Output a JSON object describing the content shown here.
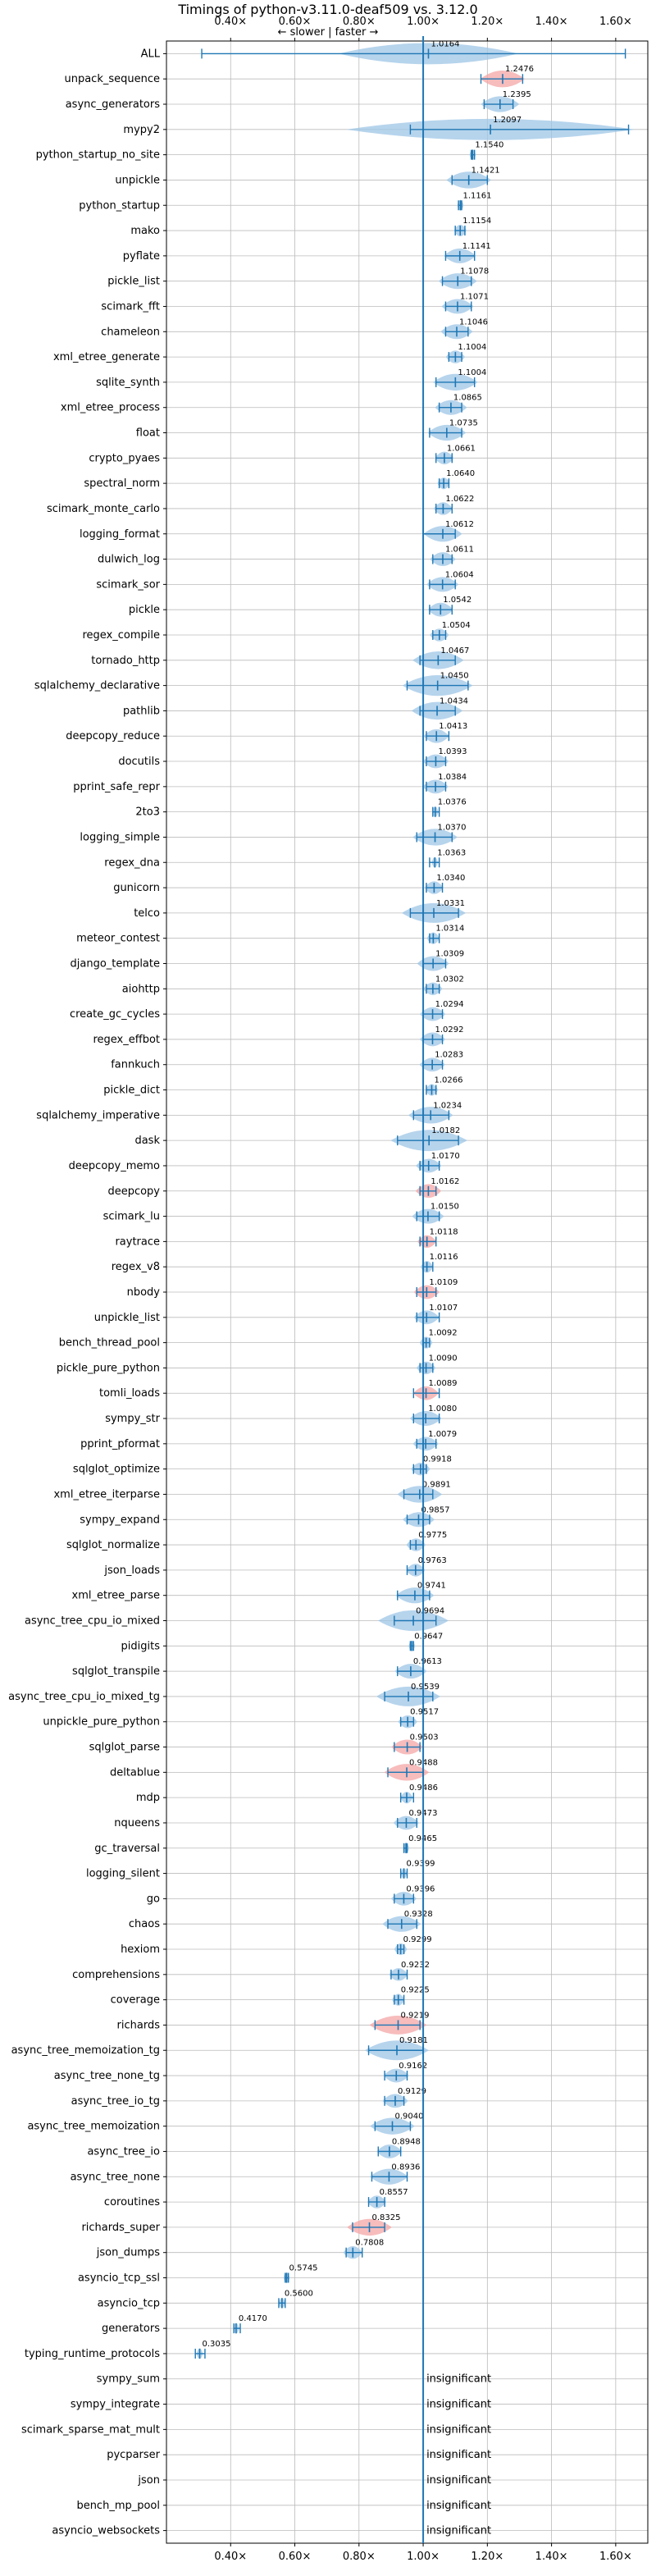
{
  "chart_data": {
    "type": "violin",
    "title": "Timings of python-v3.11.0-deaf509 vs. 3.12.0",
    "direction_label": "← slower  |  faster →",
    "x_tick_labels": [
      "0.40×",
      "0.60×",
      "0.80×",
      "1.00×",
      "1.20×",
      "1.40×",
      "1.60×"
    ],
    "x_ticks": [
      0.4,
      0.6,
      0.8,
      1.0,
      1.2,
      1.4,
      1.6
    ],
    "xlim": [
      0.2,
      1.7
    ],
    "reference_line": 1.0,
    "grid": true,
    "insignificant_label": "insignificant",
    "colors": {
      "violin": "#9ec6e6",
      "significant_violin": "#f4a6a6",
      "stat": "#1f77b4",
      "grid": "#bbbbbb",
      "reference": "#1f77b4"
    },
    "benchmarks": [
      {
        "name": "ALL",
        "value": 1.0164,
        "label": "1.0164",
        "lo": 0.31,
        "hi": 1.63,
        "spread": 0.28
      },
      {
        "name": "unpack_sequence",
        "value": 1.2476,
        "label": "1.2476",
        "lo": 1.18,
        "hi": 1.31,
        "spread": 0.07,
        "highlight": true
      },
      {
        "name": "async_generators",
        "value": 1.2395,
        "label": "1.2395",
        "lo": 1.19,
        "hi": 1.28,
        "spread": 0.06
      },
      {
        "name": "mypy2",
        "value": 1.2097,
        "label": "1.2097",
        "lo": 0.96,
        "hi": 1.64,
        "spread": 0.45
      },
      {
        "name": "python_startup_no_site",
        "value": 1.154,
        "label": "1.1540",
        "lo": 1.15,
        "hi": 1.16,
        "spread": 0.01
      },
      {
        "name": "unpickle",
        "value": 1.1421,
        "label": "1.1421",
        "lo": 1.09,
        "hi": 1.2,
        "spread": 0.07
      },
      {
        "name": "python_startup",
        "value": 1.1161,
        "label": "1.1161",
        "lo": 1.11,
        "hi": 1.12,
        "spread": 0.01
      },
      {
        "name": "mako",
        "value": 1.1154,
        "label": "1.1154",
        "lo": 1.1,
        "hi": 1.13,
        "spread": 0.02
      },
      {
        "name": "pyflate",
        "value": 1.1141,
        "label": "1.1141",
        "lo": 1.07,
        "hi": 1.16,
        "spread": 0.05
      },
      {
        "name": "pickle_list",
        "value": 1.1078,
        "label": "1.1078",
        "lo": 1.06,
        "hi": 1.15,
        "spread": 0.06
      },
      {
        "name": "scimark_fft",
        "value": 1.1071,
        "label": "1.1071",
        "lo": 1.07,
        "hi": 1.15,
        "spread": 0.05
      },
      {
        "name": "chameleon",
        "value": 1.1046,
        "label": "1.1046",
        "lo": 1.07,
        "hi": 1.14,
        "spread": 0.05
      },
      {
        "name": "xml_etree_generate",
        "value": 1.1004,
        "label": "1.1004",
        "lo": 1.08,
        "hi": 1.12,
        "spread": 0.03
      },
      {
        "name": "sqlite_synth",
        "value": 1.1004,
        "label": "1.1004",
        "lo": 1.04,
        "hi": 1.16,
        "spread": 0.07
      },
      {
        "name": "xml_etree_process",
        "value": 1.0865,
        "label": "1.0865",
        "lo": 1.05,
        "hi": 1.12,
        "spread": 0.05
      },
      {
        "name": "float",
        "value": 1.0735,
        "label": "1.0735",
        "lo": 1.02,
        "hi": 1.12,
        "spread": 0.06
      },
      {
        "name": "crypto_pyaes",
        "value": 1.0661,
        "label": "1.0661",
        "lo": 1.04,
        "hi": 1.09,
        "spread": 0.03
      },
      {
        "name": "spectral_norm",
        "value": 1.064,
        "label": "1.0640",
        "lo": 1.05,
        "hi": 1.08,
        "spread": 0.02
      },
      {
        "name": "scimark_monte_carlo",
        "value": 1.0622,
        "label": "1.0622",
        "lo": 1.04,
        "hi": 1.09,
        "spread": 0.03
      },
      {
        "name": "logging_format",
        "value": 1.0612,
        "label": "1.0612",
        "lo": 1.0,
        "hi": 1.1,
        "spread": 0.06
      },
      {
        "name": "dulwich_log",
        "value": 1.0611,
        "label": "1.0611",
        "lo": 1.03,
        "hi": 1.09,
        "spread": 0.04
      },
      {
        "name": "scimark_sor",
        "value": 1.0604,
        "label": "1.0604",
        "lo": 1.02,
        "hi": 1.1,
        "spread": 0.05
      },
      {
        "name": "pickle",
        "value": 1.0542,
        "label": "1.0542",
        "lo": 1.02,
        "hi": 1.09,
        "spread": 0.04
      },
      {
        "name": "regex_compile",
        "value": 1.0504,
        "label": "1.0504",
        "lo": 1.03,
        "hi": 1.07,
        "spread": 0.03
      },
      {
        "name": "tornado_http",
        "value": 1.0467,
        "label": "1.0467",
        "lo": 0.99,
        "hi": 1.1,
        "spread": 0.08
      },
      {
        "name": "sqlalchemy_declarative",
        "value": 1.045,
        "label": "1.0450",
        "lo": 0.95,
        "hi": 1.14,
        "spread": 0.11
      },
      {
        "name": "pathlib",
        "value": 1.0434,
        "label": "1.0434",
        "lo": 0.99,
        "hi": 1.1,
        "spread": 0.08
      },
      {
        "name": "deepcopy_reduce",
        "value": 1.0413,
        "label": "1.0413",
        "lo": 1.01,
        "hi": 1.08,
        "spread": 0.04
      },
      {
        "name": "docutils",
        "value": 1.0393,
        "label": "1.0393",
        "lo": 1.01,
        "hi": 1.07,
        "spread": 0.04
      },
      {
        "name": "pprint_safe_repr",
        "value": 1.0384,
        "label": "1.0384",
        "lo": 1.01,
        "hi": 1.07,
        "spread": 0.04
      },
      {
        "name": "2to3",
        "value": 1.0376,
        "label": "1.0376",
        "lo": 1.03,
        "hi": 1.05,
        "spread": 0.01
      },
      {
        "name": "logging_simple",
        "value": 1.037,
        "label": "1.0370",
        "lo": 0.98,
        "hi": 1.09,
        "spread": 0.07
      },
      {
        "name": "regex_dna",
        "value": 1.0363,
        "label": "1.0363",
        "lo": 1.02,
        "hi": 1.05,
        "spread": 0.01
      },
      {
        "name": "gunicorn",
        "value": 1.034,
        "label": "1.0340",
        "lo": 1.01,
        "hi": 1.06,
        "spread": 0.03
      },
      {
        "name": "telco",
        "value": 1.0331,
        "label": "1.0331",
        "lo": 0.96,
        "hi": 1.11,
        "spread": 0.1
      },
      {
        "name": "meteor_contest",
        "value": 1.0314,
        "label": "1.0314",
        "lo": 1.02,
        "hi": 1.05,
        "spread": 0.02
      },
      {
        "name": "django_template",
        "value": 1.0309,
        "label": "1.0309",
        "lo": 1.0,
        "hi": 1.07,
        "spread": 0.05
      },
      {
        "name": "aiohttp",
        "value": 1.0302,
        "label": "1.0302",
        "lo": 1.01,
        "hi": 1.05,
        "spread": 0.03
      },
      {
        "name": "create_gc_cycles",
        "value": 1.0294,
        "label": "1.0294",
        "lo": 1.0,
        "hi": 1.06,
        "spread": 0.04
      },
      {
        "name": "regex_effbot",
        "value": 1.0292,
        "label": "1.0292",
        "lo": 1.0,
        "hi": 1.06,
        "spread": 0.04
      },
      {
        "name": "fannkuch",
        "value": 1.0283,
        "label": "1.0283",
        "lo": 1.0,
        "hi": 1.06,
        "spread": 0.04
      },
      {
        "name": "pickle_dict",
        "value": 1.0266,
        "label": "1.0266",
        "lo": 1.01,
        "hi": 1.04,
        "spread": 0.02
      },
      {
        "name": "sqlalchemy_imperative",
        "value": 1.0234,
        "label": "1.0234",
        "lo": 0.97,
        "hi": 1.08,
        "spread": 0.07
      },
      {
        "name": "dask",
        "value": 1.0182,
        "label": "1.0182",
        "lo": 0.92,
        "hi": 1.11,
        "spread": 0.12
      },
      {
        "name": "deepcopy_memo",
        "value": 1.017,
        "label": "1.0170",
        "lo": 0.99,
        "hi": 1.05,
        "spread": 0.04
      },
      {
        "name": "deepcopy",
        "value": 1.0162,
        "label": "1.0162",
        "lo": 0.99,
        "hi": 1.04,
        "spread": 0.04,
        "highlight": true
      },
      {
        "name": "scimark_lu",
        "value": 1.015,
        "label": "1.0150",
        "lo": 0.98,
        "hi": 1.05,
        "spread": 0.05
      },
      {
        "name": "raytrace",
        "value": 1.0118,
        "label": "1.0118",
        "lo": 0.99,
        "hi": 1.04,
        "spread": 0.03,
        "highlight": true
      },
      {
        "name": "regex_v8",
        "value": 1.0116,
        "label": "1.0116",
        "lo": 1.0,
        "hi": 1.03,
        "spread": 0.02
      },
      {
        "name": "nbody",
        "value": 1.0109,
        "label": "1.0109",
        "lo": 0.98,
        "hi": 1.04,
        "spread": 0.04,
        "highlight": true
      },
      {
        "name": "unpickle_list",
        "value": 1.0107,
        "label": "1.0107",
        "lo": 0.98,
        "hi": 1.05,
        "spread": 0.04
      },
      {
        "name": "bench_thread_pool",
        "value": 1.0092,
        "label": "1.0092",
        "lo": 1.0,
        "hi": 1.02,
        "spread": 0.02
      },
      {
        "name": "pickle_pure_python",
        "value": 1.009,
        "label": "1.0090",
        "lo": 0.99,
        "hi": 1.03,
        "spread": 0.03
      },
      {
        "name": "tomli_loads",
        "value": 1.0089,
        "label": "1.0089",
        "lo": 0.97,
        "hi": 1.05,
        "spread": 0.04,
        "highlight": true
      },
      {
        "name": "sympy_str",
        "value": 1.008,
        "label": "1.0080",
        "lo": 0.97,
        "hi": 1.05,
        "spread": 0.05
      },
      {
        "name": "pprint_pformat",
        "value": 1.0079,
        "label": "1.0079",
        "lo": 0.98,
        "hi": 1.04,
        "spread": 0.04
      },
      {
        "name": "sqlglot_optimize",
        "value": 0.9918,
        "label": "0.9918",
        "lo": 0.97,
        "hi": 1.01,
        "spread": 0.03
      },
      {
        "name": "xml_etree_iterparse",
        "value": 0.9891,
        "label": "0.9891",
        "lo": 0.94,
        "hi": 1.03,
        "spread": 0.07
      },
      {
        "name": "sympy_expand",
        "value": 0.9857,
        "label": "0.9857",
        "lo": 0.95,
        "hi": 1.02,
        "spread": 0.05
      },
      {
        "name": "sqlglot_normalize",
        "value": 0.9775,
        "label": "0.9775",
        "lo": 0.96,
        "hi": 1.0,
        "spread": 0.03
      },
      {
        "name": "json_loads",
        "value": 0.9763,
        "label": "0.9763",
        "lo": 0.95,
        "hi": 1.0,
        "spread": 0.03
      },
      {
        "name": "xml_etree_parse",
        "value": 0.9741,
        "label": "0.9741",
        "lo": 0.92,
        "hi": 1.02,
        "spread": 0.06
      },
      {
        "name": "async_tree_cpu_io_mixed",
        "value": 0.9694,
        "label": "0.9694",
        "lo": 0.91,
        "hi": 1.04,
        "spread": 0.11
      },
      {
        "name": "pidigits",
        "value": 0.9647,
        "label": "0.9647",
        "lo": 0.96,
        "hi": 0.97,
        "spread": 0.01
      },
      {
        "name": "sqlglot_transpile",
        "value": 0.9613,
        "label": "0.9613",
        "lo": 0.92,
        "hi": 1.0,
        "spread": 0.05
      },
      {
        "name": "async_tree_cpu_io_mixed_tg",
        "value": 0.9539,
        "label": "0.9539",
        "lo": 0.88,
        "hi": 1.03,
        "spread": 0.1
      },
      {
        "name": "unpickle_pure_python",
        "value": 0.9517,
        "label": "0.9517",
        "lo": 0.93,
        "hi": 0.97,
        "spread": 0.03
      },
      {
        "name": "sqlglot_parse",
        "value": 0.9503,
        "label": "0.9503",
        "lo": 0.91,
        "hi": 0.99,
        "spread": 0.05,
        "highlight": true
      },
      {
        "name": "deltablue",
        "value": 0.9488,
        "label": "0.9488",
        "lo": 0.89,
        "hi": 1.0,
        "spread": 0.07,
        "highlight": true
      },
      {
        "name": "mdp",
        "value": 0.9486,
        "label": "0.9486",
        "lo": 0.93,
        "hi": 0.97,
        "spread": 0.02
      },
      {
        "name": "nqueens",
        "value": 0.9473,
        "label": "0.9473",
        "lo": 0.92,
        "hi": 0.98,
        "spread": 0.04
      },
      {
        "name": "gc_traversal",
        "value": 0.9465,
        "label": "0.9465",
        "lo": 0.94,
        "hi": 0.95,
        "spread": 0.01
      },
      {
        "name": "logging_silent",
        "value": 0.9399,
        "label": "0.9399",
        "lo": 0.93,
        "hi": 0.95,
        "spread": 0.01
      },
      {
        "name": "go",
        "value": 0.9396,
        "label": "0.9396",
        "lo": 0.91,
        "hi": 0.97,
        "spread": 0.04
      },
      {
        "name": "chaos",
        "value": 0.9328,
        "label": "0.9328",
        "lo": 0.89,
        "hi": 0.98,
        "spread": 0.06
      },
      {
        "name": "hexiom",
        "value": 0.9299,
        "label": "0.9299",
        "lo": 0.92,
        "hi": 0.94,
        "spread": 0.02
      },
      {
        "name": "comprehensions",
        "value": 0.9232,
        "label": "0.9232",
        "lo": 0.9,
        "hi": 0.95,
        "spread": 0.03
      },
      {
        "name": "coverage",
        "value": 0.9225,
        "label": "0.9225",
        "lo": 0.91,
        "hi": 0.94,
        "spread": 0.02
      },
      {
        "name": "richards",
        "value": 0.9219,
        "label": "0.9219",
        "lo": 0.85,
        "hi": 0.99,
        "spread": 0.09,
        "highlight": true
      },
      {
        "name": "async_tree_memoization_tg",
        "value": 0.9181,
        "label": "0.9181",
        "lo": 0.83,
        "hi": 1.0,
        "spread": 0.1
      },
      {
        "name": "async_tree_none_tg",
        "value": 0.9162,
        "label": "0.9162",
        "lo": 0.88,
        "hi": 0.95,
        "spread": 0.04
      },
      {
        "name": "async_tree_io_tg",
        "value": 0.9129,
        "label": "0.9129",
        "lo": 0.88,
        "hi": 0.94,
        "spread": 0.04
      },
      {
        "name": "async_tree_memoization",
        "value": 0.904,
        "label": "0.9040",
        "lo": 0.85,
        "hi": 0.96,
        "spread": 0.07
      },
      {
        "name": "async_tree_io",
        "value": 0.8948,
        "label": "0.8948",
        "lo": 0.86,
        "hi": 0.93,
        "spread": 0.04
      },
      {
        "name": "async_tree_none",
        "value": 0.8936,
        "label": "0.8936",
        "lo": 0.84,
        "hi": 0.95,
        "spread": 0.06
      },
      {
        "name": "coroutines",
        "value": 0.8557,
        "label": "0.8557",
        "lo": 0.83,
        "hi": 0.88,
        "spread": 0.03
      },
      {
        "name": "richards_super",
        "value": 0.8325,
        "label": "0.8325",
        "lo": 0.78,
        "hi": 0.88,
        "spread": 0.07,
        "highlight": true
      },
      {
        "name": "json_dumps",
        "value": 0.7808,
        "label": "0.7808",
        "lo": 0.76,
        "hi": 0.81,
        "spread": 0.03
      },
      {
        "name": "asyncio_tcp_ssl",
        "value": 0.5745,
        "label": "0.5745",
        "lo": 0.57,
        "hi": 0.58,
        "spread": 0.01
      },
      {
        "name": "asyncio_tcp",
        "value": 0.56,
        "label": "0.5600",
        "lo": 0.55,
        "hi": 0.57,
        "spread": 0.01
      },
      {
        "name": "generators",
        "value": 0.417,
        "label": "0.4170",
        "lo": 0.41,
        "hi": 0.43,
        "spread": 0.01
      },
      {
        "name": "typing_runtime_protocols",
        "value": 0.3035,
        "label": "0.3035",
        "lo": 0.29,
        "hi": 0.32,
        "spread": 0.01
      },
      {
        "name": "sympy_sum",
        "insignificant": true
      },
      {
        "name": "sympy_integrate",
        "insignificant": true
      },
      {
        "name": "scimark_sparse_mat_mult",
        "insignificant": true
      },
      {
        "name": "pycparser",
        "insignificant": true
      },
      {
        "name": "json",
        "insignificant": true
      },
      {
        "name": "bench_mp_pool",
        "insignificant": true
      },
      {
        "name": "asyncio_websockets",
        "insignificant": true
      }
    ]
  }
}
